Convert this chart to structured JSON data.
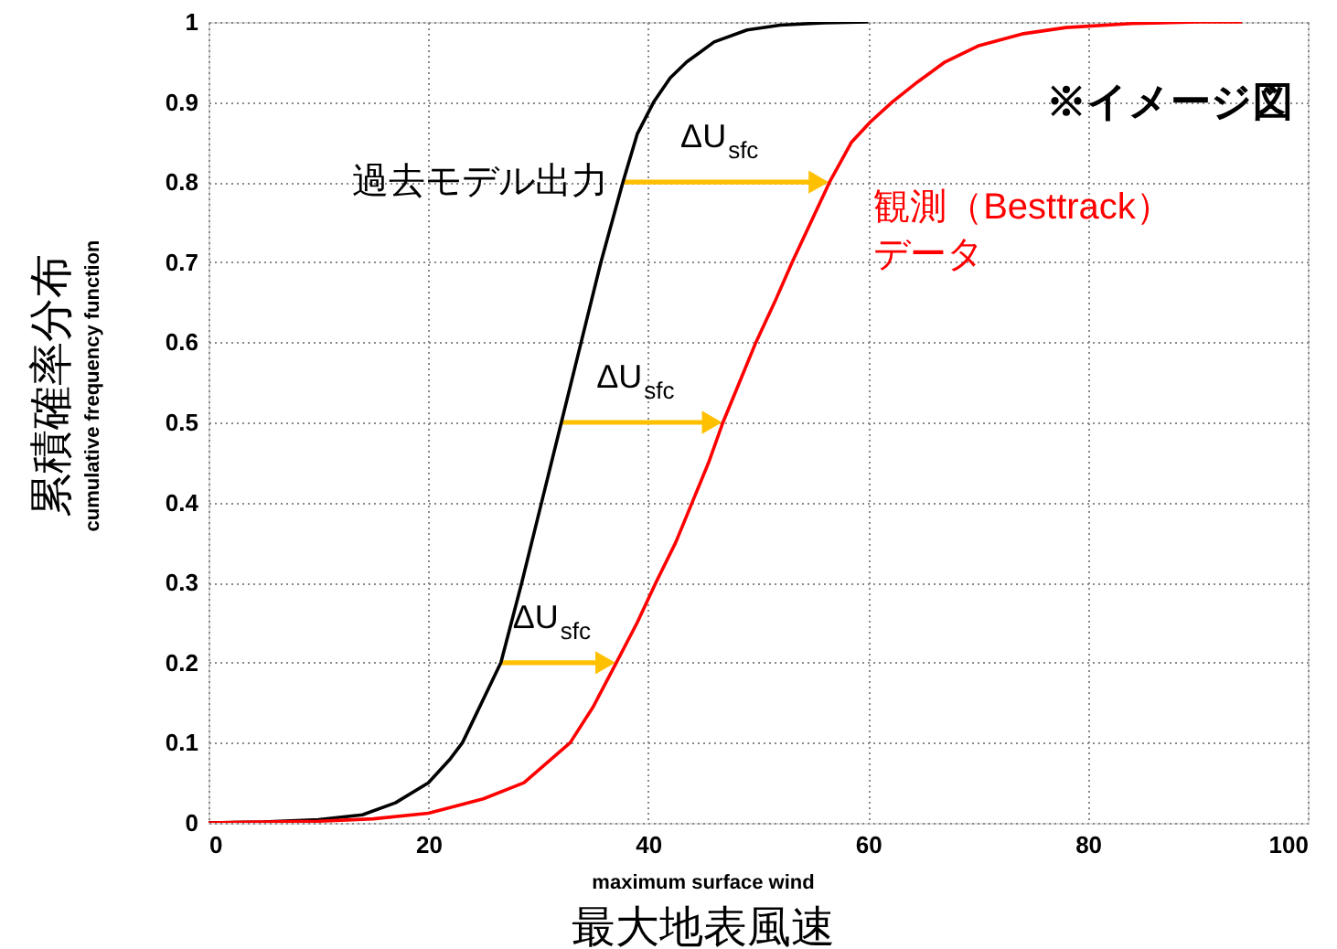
{
  "chart_data": {
    "type": "line",
    "xlabel": "maximum surface wind\n最大地表風速",
    "ylabel": "累積確率分布\ncumulative frequency function",
    "xlim": [
      0,
      100
    ],
    "ylim": [
      0,
      1
    ],
    "xticks": [
      0,
      20,
      40,
      60,
      80,
      100
    ],
    "yticks": [
      0,
      0.1,
      0.2,
      0.3,
      0.4,
      0.5,
      0.6,
      0.7,
      0.8,
      0.9,
      1
    ],
    "grid": true,
    "line_style": "solid",
    "marker": "none",
    "series": [
      {
        "name": "過去モデル出力",
        "color": "#000000",
        "x": [
          0,
          5,
          10,
          14,
          17,
          20,
          22,
          23.1,
          24.5,
          26.6,
          28.5,
          30.3,
          32.1,
          33.9,
          35.7,
          37.7,
          39,
          40.5,
          42,
          43.5,
          46,
          49,
          52,
          56,
          60
        ],
        "values": [
          0,
          0.001,
          0.004,
          0.01,
          0.025,
          0.05,
          0.08,
          0.1,
          0.14,
          0.2,
          0.3,
          0.4,
          0.5,
          0.6,
          0.7,
          0.8,
          0.86,
          0.9,
          0.93,
          0.95,
          0.975,
          0.99,
          0.996,
          0.999,
          1
        ]
      },
      {
        "name": "観測（Besttrack）データ",
        "color": "#ff0000",
        "x": [
          0,
          5,
          10,
          15,
          20,
          25,
          28.7,
          32.9,
          35,
          37.1,
          39,
          40.7,
          42.5,
          44,
          45.5,
          46.8,
          48.3,
          49.8,
          51.5,
          53.1,
          54.8,
          56.5,
          58.5,
          60.2,
          62.2,
          64.5,
          67,
          70,
          74,
          78,
          84,
          90,
          94
        ],
        "values": [
          0,
          0.001,
          0.002,
          0.005,
          0.012,
          0.03,
          0.05,
          0.1,
          0.145,
          0.2,
          0.25,
          0.3,
          0.35,
          0.4,
          0.45,
          0.5,
          0.55,
          0.6,
          0.65,
          0.7,
          0.75,
          0.8,
          0.85,
          0.875,
          0.9,
          0.925,
          0.95,
          0.97,
          0.985,
          0.993,
          0.998,
          1,
          1
        ]
      }
    ],
    "annotations": [
      {
        "text": "ΔU$_{sfc}$",
        "x": 37.7,
        "y": 0.8
      },
      {
        "text": "ΔU$_{sfc}$",
        "x": 32.1,
        "y": 0.5
      },
      {
        "text": "ΔU$_{sfc}$",
        "x": 26.6,
        "y": 0.2
      },
      "※イメージ図"
    ]
  }
}
